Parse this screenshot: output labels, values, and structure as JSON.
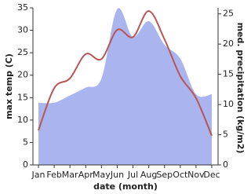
{
  "chart_data": {
    "type": "line-area",
    "xlabel": "date (month)",
    "ylabel": "max temp (C)",
    "y2label": "med. precipitation (kg/m2)",
    "categories": [
      "Jan",
      "Feb",
      "Mar",
      "Apr",
      "May",
      "Jun",
      "Jul",
      "Aug",
      "Sep",
      "Oct",
      "Nov",
      "Dec"
    ],
    "series": [
      {
        "kind": "area",
        "axis": "y2",
        "color": "#aab4ee",
        "values": [
          10.3,
          10.3,
          11.5,
          12.8,
          14.3,
          25.8,
          21.2,
          23.8,
          19.9,
          17.6,
          11.7,
          11.7
        ]
      },
      {
        "kind": "line",
        "axis": "y",
        "color": "#bb5555",
        "values": [
          7.7,
          17.1,
          19.3,
          24.7,
          23.6,
          30.1,
          28.5,
          34.3,
          28,
          19.8,
          14.9,
          6.5
        ]
      }
    ],
    "ylim": [
      0,
      35
    ],
    "yticks": [
      0,
      5,
      10,
      15,
      20,
      25,
      30,
      35
    ],
    "y2lim": [
      0,
      26
    ],
    "y2ticks": [
      0,
      5,
      10,
      15,
      20,
      25
    ]
  }
}
